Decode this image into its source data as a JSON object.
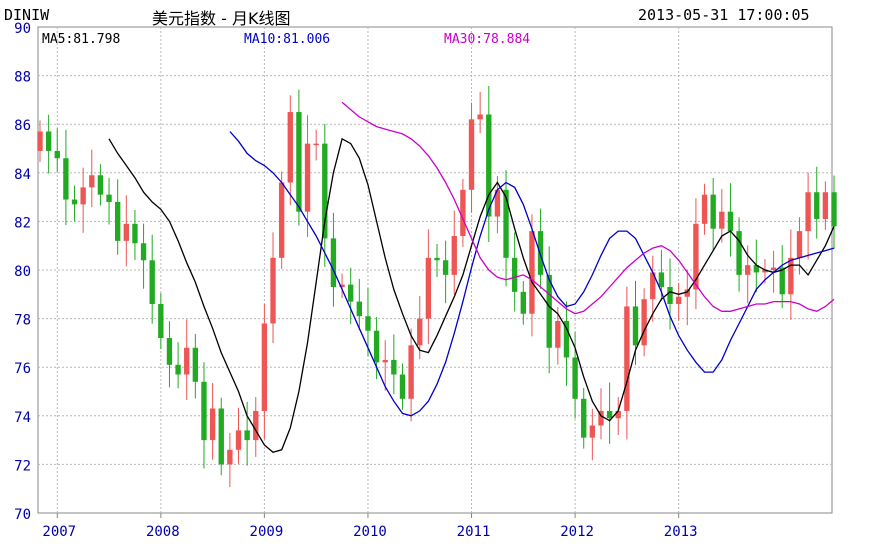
{
  "header": {
    "symbol": "DINIW",
    "title": "美元指数 - 月K线图",
    "datetime": "2013-05-31 17:00:05"
  },
  "indicators": [
    {
      "label": "MA5:81.798",
      "color": "#000000"
    },
    {
      "label": "MA10:81.006",
      "color": "#0000cc"
    },
    {
      "label": "MA30:78.884",
      "color": "#cc00cc"
    }
  ],
  "colors": {
    "up": "#ee5555",
    "down": "#22aa22",
    "grid": "#b8b8b8",
    "axis_text": "#0000aa"
  },
  "chart_data": {
    "type": "candlestick",
    "xlabel": "",
    "ylabel": "",
    "ylim": [
      70,
      90
    ],
    "yticks": [
      70,
      72,
      74,
      76,
      78,
      80,
      82,
      84,
      86,
      88,
      90
    ],
    "xticks": [
      "2007",
      "2008",
      "2009",
      "2010",
      "2011",
      "2012",
      "2013"
    ],
    "grid": true,
    "period": {
      "start": "2006-11",
      "end": "2013-05",
      "interval": "monthly"
    },
    "closes": [
      85.7,
      84.9,
      84.6,
      82.9,
      82.7,
      83.4,
      83.9,
      83.1,
      82.8,
      81.2,
      81.9,
      81.1,
      80.4,
      78.6,
      77.2,
      76.1,
      75.7,
      76.8,
      75.4,
      73.0,
      74.3,
      72.0,
      72.6,
      73.4,
      73.0,
      74.2,
      77.8,
      80.5,
      83.6,
      86.5,
      82.4,
      85.2,
      85.2,
      81.3,
      79.3,
      79.4,
      78.7,
      78.1,
      77.5,
      76.2,
      76.3,
      75.7,
      74.7,
      76.9,
      78.0,
      80.5,
      80.4,
      79.8,
      81.4,
      83.3,
      86.2,
      86.4,
      82.2,
      83.3,
      80.5,
      79.1,
      78.2,
      81.6,
      79.8,
      76.8,
      77.9,
      76.4,
      74.7,
      73.1,
      73.6,
      74.2,
      73.9,
      74.2,
      78.5,
      76.9,
      78.8,
      79.9,
      79.3,
      78.6,
      78.9,
      79.2,
      81.9,
      83.1,
      81.7,
      82.4,
      81.6,
      79.8,
      80.2,
      79.9,
      80.0,
      80.1,
      79.0,
      80.5,
      81.6,
      83.2,
      82.1,
      83.2,
      81.8
    ],
    "ma": [
      {
        "name": "MA5",
        "color": "#000000",
        "values": [
          85.4,
          84.8,
          84.3,
          83.8,
          83.2,
          82.8,
          82.5,
          82.0,
          81.2,
          80.3,
          79.5,
          78.5,
          77.6,
          76.6,
          75.8,
          75.0,
          74.0,
          73.4,
          72.8,
          72.5,
          72.6,
          73.5,
          75.0,
          77.0,
          79.5,
          82.0,
          84.0,
          85.4,
          85.2,
          84.6,
          83.5,
          82.0,
          80.5,
          79.2,
          78.2,
          77.3,
          76.7,
          76.6,
          77.3,
          78.1,
          78.9,
          79.8,
          81.0,
          82.2,
          83.1,
          83.6,
          83.0,
          81.7,
          80.5,
          79.5,
          79.0,
          78.5,
          78.2,
          77.6,
          76.8,
          75.6,
          74.6,
          74.0,
          73.8,
          74.2,
          75.4,
          76.7,
          77.5,
          78.2,
          78.8,
          79.1,
          79.0,
          79.1,
          79.6,
          80.2,
          80.8,
          81.4,
          81.6,
          81.2,
          80.6,
          80.2,
          80.0,
          79.9,
          80.0,
          80.2,
          80.2,
          79.8,
          80.4,
          81.0,
          81.8
        ]
      },
      {
        "name": "MA10",
        "color": "#0000cc",
        "values": [
          85.7,
          85.3,
          84.8,
          84.5,
          84.3,
          84.0,
          83.6,
          83.1,
          82.6,
          82.0,
          81.4,
          80.7,
          80.0,
          79.2,
          78.4,
          77.6,
          76.8,
          76.0,
          75.2,
          74.6,
          74.1,
          74.0,
          74.2,
          74.6,
          75.3,
          76.2,
          77.4,
          78.7,
          80.1,
          81.4,
          82.5,
          83.3,
          83.6,
          83.4,
          82.7,
          81.7,
          80.6,
          79.6,
          78.9,
          78.5,
          78.6,
          79.1,
          79.8,
          80.6,
          81.3,
          81.6,
          81.6,
          81.3,
          80.6,
          79.9,
          79.1,
          78.1,
          77.3,
          76.7,
          76.2,
          75.8,
          75.8,
          76.3,
          77.1,
          77.8,
          78.5,
          79.2,
          79.6,
          79.9,
          80.2,
          80.4,
          80.5,
          80.6,
          80.7,
          80.8,
          80.9
        ]
      },
      {
        "name": "MA30",
        "color": "#cc00cc",
        "values": [
          86.9,
          86.6,
          86.3,
          86.1,
          85.9,
          85.8,
          85.7,
          85.6,
          85.4,
          85.1,
          84.7,
          84.2,
          83.6,
          82.9,
          82.1,
          81.3,
          80.5,
          80.0,
          79.7,
          79.6,
          79.7,
          79.8,
          79.6,
          79.3,
          79.0,
          78.7,
          78.4,
          78.2,
          78.3,
          78.6,
          78.9,
          79.3,
          79.7,
          80.1,
          80.4,
          80.7,
          80.9,
          81.0,
          80.8,
          80.4,
          79.9,
          79.4,
          78.9,
          78.5,
          78.3,
          78.3,
          78.4,
          78.5,
          78.6,
          78.6,
          78.7,
          78.7,
          78.7,
          78.6,
          78.4,
          78.3,
          78.5,
          78.8
        ]
      }
    ]
  }
}
